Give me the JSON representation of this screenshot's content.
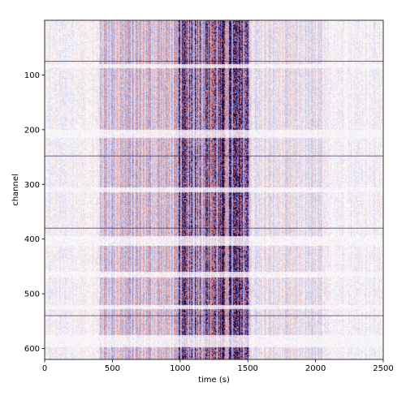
{
  "chart_data": {
    "type": "heatmap",
    "title": "",
    "xlabel": "time (s)",
    "ylabel": "channel",
    "xlim": [
      0,
      2500
    ],
    "ylim": [
      620,
      0
    ],
    "x_ticks": [
      0,
      500,
      1000,
      1500,
      2000,
      2500
    ],
    "y_ticks": [
      100,
      200,
      300,
      400,
      500,
      600
    ],
    "x_tick_labels": [
      "0",
      "500",
      "1000",
      "1500",
      "2000",
      "2500"
    ],
    "y_tick_labels": [
      "100",
      "200",
      "300",
      "400",
      "500",
      "600"
    ],
    "colormap": {
      "negative": "#1a1aa6",
      "zero": "#ffffff",
      "positive": "#b01010",
      "dense": "#2a0a3a"
    },
    "grid": false,
    "legend": "none",
    "activity_window_s": [
      410,
      1520
    ],
    "peak_window_s": [
      990,
      1510
    ],
    "quiet_channel_bands": [
      [
        80,
        88
      ],
      [
        200,
        215
      ],
      [
        305,
        315
      ],
      [
        395,
        413
      ],
      [
        460,
        470
      ],
      [
        520,
        528
      ],
      [
        575,
        598
      ]
    ],
    "horizontal_lines_channel": [
      75,
      248,
      380,
      540
    ]
  }
}
